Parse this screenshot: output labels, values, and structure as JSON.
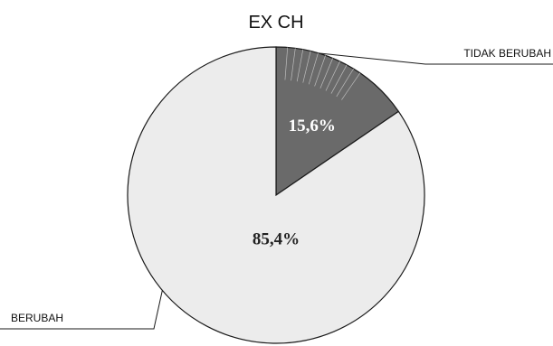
{
  "chart_data": {
    "type": "pie",
    "title": "EX CH",
    "slices": [
      {
        "label": "TIDAK BERUBAH",
        "value": 15.6,
        "display": "15,6%",
        "color": "#6a6a6a",
        "text_color": "#ffffff"
      },
      {
        "label": "BERUBAH",
        "value": 85.4,
        "display": "85,4%",
        "color": "#ececec",
        "text_color": "#222222"
      }
    ],
    "accent_color": "#bdbdbd",
    "legend": "leader-lines"
  }
}
